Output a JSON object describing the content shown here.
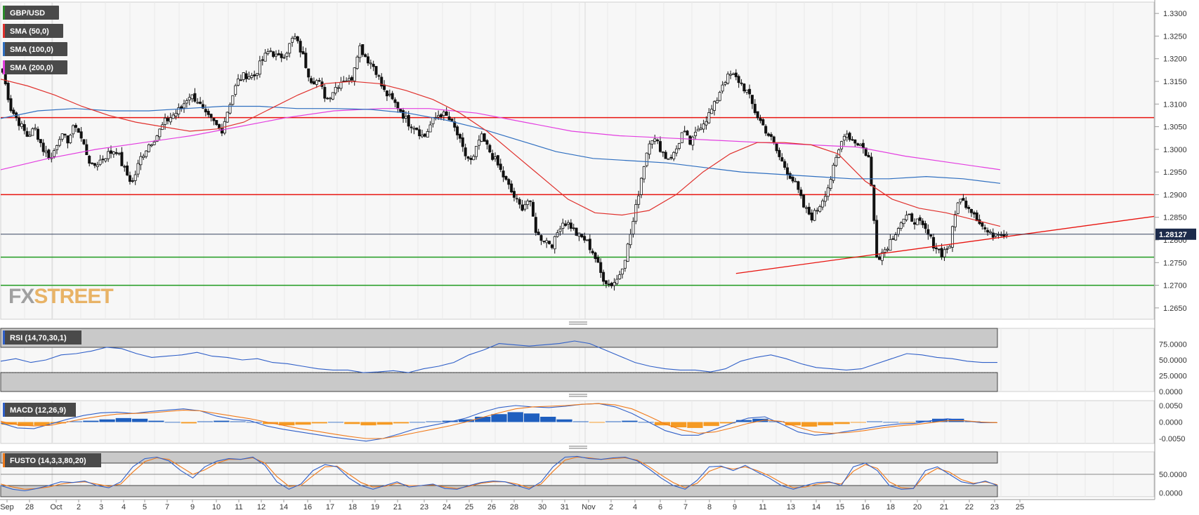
{
  "chart_data": [
    {
      "type": "candlestick",
      "panel": "price",
      "symbol": "GBP/USD",
      "ylim": [
        1.2625,
        1.3325
      ],
      "yticks": [
        "1.3300",
        "1.3250",
        "1.3200",
        "1.3150",
        "1.3100",
        "1.3050",
        "1.3000",
        "1.2950",
        "1.2900",
        "1.2850",
        "1.2800",
        "1.2750",
        "1.2700",
        "1.2650"
      ],
      "last_price": "1.28127",
      "indicators": [
        {
          "name": "SMA (50,0)",
          "color": "#e0302c"
        },
        {
          "name": "SMA (100,0)",
          "color": "#2f6fc0"
        },
        {
          "name": "SMA (200,0)",
          "color": "#e33ee0"
        }
      ],
      "horizontal_lines": [
        {
          "value": 1.307,
          "color": "#e8140f"
        },
        {
          "value": 1.29,
          "color": "#e8140f"
        },
        {
          "value": 1.2762,
          "color": "#1f9a1f"
        },
        {
          "value": 1.27,
          "color": "#1f9a1f"
        }
      ],
      "trendline": {
        "from": {
          "bar": 271,
          "value": 1.2726
        },
        "to": {
          "bar": 370,
          "value": 1.2852
        },
        "color": "#e8140f"
      },
      "close_path": [
        1.317,
        1.309,
        1.306,
        1.303,
        1.3045,
        1.3,
        1.298,
        1.303,
        1.302,
        1.3055,
        1.301,
        1.296,
        1.2975,
        1.299,
        1.3,
        1.2955,
        1.2925,
        1.298,
        1.301,
        1.303,
        1.306,
        1.3075,
        1.309,
        1.312,
        1.311,
        1.3075,
        1.306,
        1.304,
        1.31,
        1.315,
        1.3165,
        1.316,
        1.3195,
        1.322,
        1.32,
        1.3215,
        1.325,
        1.321,
        1.3155,
        1.315,
        1.311,
        1.3135,
        1.3155,
        1.315,
        1.323,
        1.32,
        1.318,
        1.313,
        1.311,
        1.309,
        1.306,
        1.305,
        1.3025,
        1.306,
        1.308,
        1.307,
        1.304,
        1.299,
        1.297,
        1.303,
        1.3,
        1.297,
        1.2935,
        1.29,
        1.287,
        1.289,
        1.281,
        1.28,
        1.279,
        1.284,
        1.2835,
        1.281,
        1.28,
        1.277,
        1.272,
        1.27,
        1.2715,
        1.277,
        1.285,
        1.295,
        1.303,
        1.301,
        1.298,
        1.299,
        1.304,
        1.301,
        1.305,
        1.307,
        1.31,
        1.315,
        1.3165,
        1.315,
        1.3125,
        1.308,
        1.305,
        1.302,
        1.298,
        1.295,
        1.292,
        1.287,
        1.285,
        1.288,
        1.292,
        1.298,
        1.304,
        1.302,
        1.301,
        1.298,
        1.276,
        1.278,
        1.281,
        1.284,
        1.285,
        1.284,
        1.282,
        1.279,
        1.277,
        1.279,
        1.289,
        1.288,
        1.286,
        1.283,
        1.281,
        1.282,
        1.2812
      ],
      "sma50_path": [
        1.3155,
        1.314,
        1.312,
        1.3095,
        1.3075,
        1.306,
        1.305,
        1.304,
        1.3045,
        1.306,
        1.309,
        1.312,
        1.3145,
        1.315,
        1.3145,
        1.313,
        1.311,
        1.308,
        1.304,
        1.299,
        1.294,
        1.289,
        1.286,
        1.2855,
        1.2865,
        1.29,
        1.295,
        1.299,
        1.3015,
        1.3015,
        1.301,
        1.299,
        1.293,
        1.289,
        1.287,
        1.286,
        1.2845,
        1.283
      ],
      "sma100_path": [
        1.3068,
        1.3085,
        1.309,
        1.3085,
        1.3085,
        1.309,
        1.3095,
        1.3095,
        1.309,
        1.309,
        1.3088,
        1.308,
        1.3065,
        1.3045,
        1.302,
        1.2995,
        1.298,
        1.2975,
        1.297,
        1.296,
        1.295,
        1.2945,
        1.294,
        1.2935,
        1.2935,
        1.294,
        1.2935,
        1.2925
      ],
      "sma200_path": [
        1.2955,
        1.298,
        1.3,
        1.3015,
        1.303,
        1.305,
        1.307,
        1.3085,
        1.309,
        1.309,
        1.308,
        1.306,
        1.304,
        1.303,
        1.3025,
        1.302,
        1.3015,
        1.301,
        1.3005,
        1.2985,
        1.297,
        1.2955
      ]
    },
    {
      "type": "line",
      "panel": "rsi",
      "title": "RSI (14,70,30,1)",
      "yticks": [
        "75.0000",
        "50.0000",
        "25.0000",
        "0.0000"
      ],
      "ylim": [
        0,
        100
      ],
      "levels": [
        70,
        30
      ],
      "values": [
        48,
        52,
        46,
        50,
        58,
        60,
        64,
        70,
        68,
        60,
        54,
        56,
        58,
        62,
        56,
        54,
        50,
        52,
        46,
        44,
        40,
        36,
        34,
        34,
        30,
        31,
        33,
        30,
        36,
        40,
        46,
        58,
        66,
        76,
        74,
        72,
        74,
        76,
        80,
        76,
        66,
        56,
        46,
        40,
        36,
        34,
        34,
        31,
        36,
        48,
        54,
        58,
        52,
        44,
        38,
        36,
        34,
        36,
        44,
        52,
        60,
        58,
        54,
        52,
        48,
        46,
        46
      ]
    },
    {
      "type": "bar+line",
      "panel": "macd",
      "title": "MACD (12,26,9)",
      "yticks": [
        "0.0050",
        "0.0000",
        "-0.0050"
      ],
      "ylim": [
        -0.0065,
        0.0065
      ],
      "histogram": [
        -0.0008,
        -0.0012,
        -0.001,
        -0.0004,
        0.0002,
        0.0004,
        0.0008,
        0.0012,
        0.001,
        0.0004,
        0.0,
        -0.0004,
        0.0002,
        0.0004,
        0.0002,
        0.0,
        -0.0006,
        -0.001,
        -0.0008,
        -0.0004,
        0.0,
        -0.0006,
        -0.001,
        -0.0008,
        -0.0004,
        0.0,
        0.0002,
        0.0004,
        0.0008,
        0.0016,
        0.0024,
        0.003,
        0.0026,
        0.0016,
        0.0008,
        0.0002,
        -0.0002,
        0.0002,
        0.0004,
        0.0,
        -0.001,
        -0.0016,
        -0.0018,
        -0.0012,
        -0.0004,
        0.0006,
        0.001,
        0.0002,
        -0.001,
        -0.0014,
        -0.001,
        -0.0006,
        -0.0002,
        0.0002,
        0.0,
        -0.0002,
        0.0004,
        0.001,
        0.001,
        0.0002,
        -0.0002
      ],
      "macd_line": [
        -0.0003,
        -0.0018,
        -0.002,
        -0.0006,
        0.0008,
        0.002,
        0.0028,
        0.003,
        0.0026,
        0.0032,
        0.0036,
        0.004,
        0.0034,
        0.0018,
        0.0008,
        0.0004,
        -0.0012,
        -0.0022,
        -0.003,
        -0.0038,
        -0.0046,
        -0.0052,
        -0.0058,
        -0.005,
        -0.0036,
        -0.002,
        -0.001,
        0.0,
        0.0012,
        0.003,
        0.0044,
        0.005,
        0.0046,
        0.0044,
        0.0048,
        0.0054,
        0.0056,
        0.0046,
        0.0026,
        0.0,
        -0.0026,
        -0.004,
        -0.004,
        -0.0022,
        -0.0004,
        0.0012,
        0.0016,
        -0.0006,
        -0.003,
        -0.004,
        -0.0036,
        -0.0028,
        -0.002,
        -0.0012,
        -0.0006,
        -0.0004,
        0.0004,
        0.001,
        0.0004,
        -0.0002,
        -0.0002
      ],
      "signal_line": [
        0.0002,
        -0.0008,
        -0.0012,
        -0.001,
        0.0,
        0.001,
        0.0018,
        0.0024,
        0.0026,
        0.0028,
        0.0032,
        0.0036,
        0.0034,
        0.0026,
        0.0018,
        0.001,
        0.0,
        -0.001,
        -0.002,
        -0.0028,
        -0.0036,
        -0.0044,
        -0.005,
        -0.005,
        -0.0042,
        -0.0032,
        -0.0022,
        -0.0012,
        0.0,
        0.0014,
        0.0028,
        0.004,
        0.0046,
        0.0048,
        0.005,
        0.0054,
        0.0056,
        0.0052,
        0.004,
        0.0018,
        -0.0006,
        -0.0024,
        -0.0034,
        -0.003,
        -0.0018,
        -0.0004,
        0.0006,
        0.0002,
        -0.0016,
        -0.003,
        -0.0034,
        -0.0032,
        -0.0026,
        -0.0018,
        -0.0012,
        -0.0008,
        -0.0002,
        0.0004,
        0.0004,
        0.0,
        -0.0002
      ]
    },
    {
      "type": "line",
      "panel": "stochastic",
      "title": "FUSTO (14,3,3,80,20)",
      "yticks": [
        "50.0000",
        "0.0000"
      ],
      "ylim": [
        -10,
        110
      ],
      "levels": [
        80,
        20
      ],
      "k_line": [
        20,
        10,
        6,
        12,
        20,
        30,
        28,
        32,
        20,
        14,
        30,
        70,
        92,
        96,
        86,
        60,
        40,
        70,
        85,
        92,
        90,
        96,
        74,
        30,
        10,
        24,
        60,
        76,
        70,
        40,
        20,
        10,
        20,
        30,
        16,
        20,
        24,
        12,
        10,
        20,
        28,
        32,
        30,
        20,
        10,
        30,
        70,
        96,
        98,
        92,
        90,
        94,
        96,
        86,
        64,
        40,
        20,
        10,
        34,
        70,
        72,
        60,
        74,
        56,
        40,
        20,
        10,
        20,
        28,
        30,
        20,
        70,
        80,
        60,
        20,
        10,
        12,
        60,
        70,
        50,
        30,
        24,
        32,
        20
      ],
      "d_line": [
        24,
        16,
        10,
        12,
        16,
        24,
        28,
        30,
        24,
        18,
        24,
        56,
        84,
        94,
        90,
        70,
        50,
        62,
        80,
        90,
        90,
        94,
        80,
        44,
        18,
        20,
        46,
        70,
        72,
        50,
        28,
        16,
        18,
        26,
        20,
        20,
        22,
        16,
        12,
        18,
        26,
        30,
        30,
        24,
        14,
        24,
        58,
        88,
        96,
        94,
        90,
        92,
        94,
        88,
        70,
        48,
        28,
        14,
        26,
        58,
        70,
        64,
        70,
        60,
        46,
        28,
        14,
        16,
        24,
        28,
        24,
        58,
        76,
        66,
        30,
        14,
        12,
        48,
        66,
        56,
        36,
        26,
        30,
        22
      ]
    }
  ],
  "x_axis": {
    "labels": [
      "Sep",
      "28",
      "Oct",
      "2",
      "3",
      "4",
      "5",
      "7",
      "9",
      "10",
      "11",
      "12",
      "14",
      "16",
      "17",
      "18",
      "19",
      "21",
      "23",
      "24",
      "25",
      "26",
      "28",
      "30",
      "31",
      "Nov",
      "2",
      "4",
      "6",
      "7",
      "8",
      "9",
      "11",
      "13",
      "14",
      "15",
      "16",
      "18",
      "20",
      "21",
      "22",
      "23",
      "25"
    ]
  },
  "branding": {
    "logo_text_fx": "FX",
    "logo_text_street": "STREET"
  }
}
